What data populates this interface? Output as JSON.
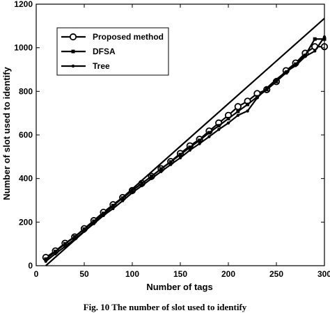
{
  "chart_data": {
    "type": "line",
    "title": "",
    "xlabel": "Number of tags",
    "ylabel": "Number of slot used to identify",
    "xlim": [
      0,
      300
    ],
    "ylim": [
      0,
      1200
    ],
    "x_ticks": [
      "0",
      "50",
      "100",
      "150",
      "200",
      "250",
      "300"
    ],
    "y_ticks": [
      "0",
      "200",
      "400",
      "600",
      "800",
      "1000",
      "1200"
    ],
    "grid": false,
    "legend_position": "top-left",
    "series": [
      {
        "name": "Proposed method",
        "marker": "circle",
        "x": [
          10,
          20,
          30,
          40,
          50,
          60,
          70,
          80,
          90,
          100,
          110,
          120,
          130,
          140,
          150,
          160,
          170,
          180,
          190,
          200,
          210,
          220,
          230,
          240,
          250,
          260,
          270,
          280,
          290,
          300
        ],
        "values": [
          38,
          68,
          103,
          132,
          170,
          207,
          245,
          280,
          313,
          345,
          378,
          410,
          445,
          478,
          515,
          550,
          580,
          618,
          655,
          690,
          730,
          755,
          790,
          808,
          845,
          895,
          930,
          975,
          1005,
          1005
        ]
      },
      {
        "name": "DFSA",
        "marker": "square",
        "x": [
          10,
          20,
          30,
          40,
          50,
          60,
          70,
          80,
          90,
          100,
          110,
          120,
          130,
          140,
          150,
          160,
          170,
          180,
          190,
          200,
          210,
          220,
          230,
          240,
          250,
          260,
          270,
          280,
          290,
          300
        ],
        "values": [
          30,
          65,
          100,
          132,
          168,
          204,
          240,
          276,
          310,
          345,
          378,
          410,
          444,
          476,
          510,
          543,
          575,
          610,
          642,
          675,
          708,
          740,
          775,
          808,
          845,
          885,
          925,
          965,
          1040,
          1040
        ]
      },
      {
        "name": "Tree",
        "marker": "dot",
        "x": [
          10,
          20,
          30,
          40,
          50,
          60,
          70,
          80,
          90,
          100,
          110,
          120,
          130,
          140,
          150,
          160,
          170,
          180,
          190,
          200,
          210,
          220,
          230,
          240,
          250,
          260,
          270,
          280,
          290,
          300
        ],
        "values": [
          20,
          55,
          88,
          122,
          158,
          193,
          230,
          262,
          298,
          335,
          367,
          400,
          432,
          464,
          495,
          530,
          560,
          592,
          625,
          655,
          690,
          710,
          770,
          815,
          855,
          890,
          918,
          960,
          985,
          1050
        ]
      },
      {
        "name": "",
        "marker": "none",
        "x": [
          10,
          300
        ],
        "values": [
          0,
          1135
        ]
      }
    ]
  },
  "caption": "Fig. 10 The number of slot used to identify"
}
